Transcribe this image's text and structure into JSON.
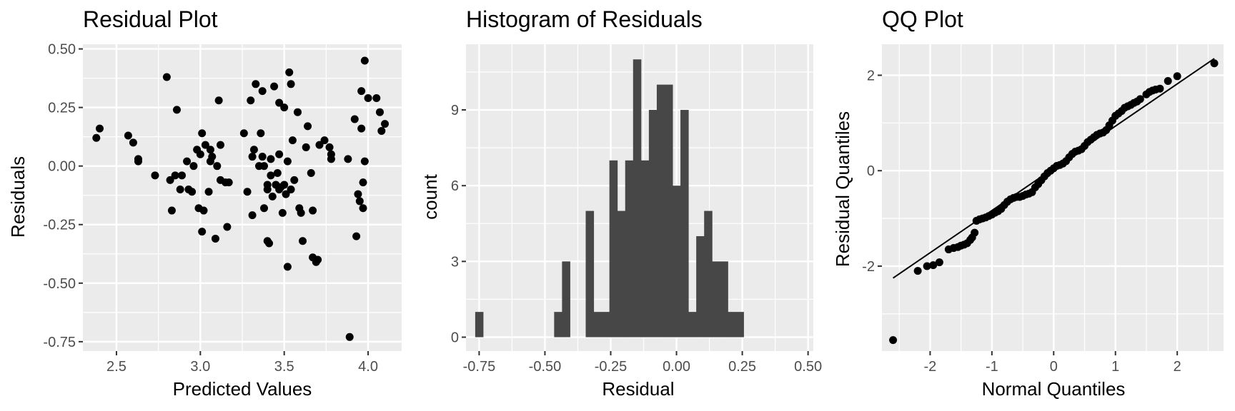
{
  "colors": {
    "panel_bg": "#ebebeb",
    "grid": "#ffffff",
    "points": "#000000",
    "bars": "#474747",
    "tick_text": "#4d4d4d",
    "tick_mark": "#333333"
  },
  "chart_data": [
    {
      "type": "scatter",
      "title": "Residual Plot",
      "xlabel": "Predicted Values",
      "ylabel": "Residuals",
      "xlim": [
        2.3,
        4.2
      ],
      "ylim": [
        -0.79,
        0.52
      ],
      "xticks": [
        2.5,
        3.0,
        3.5,
        4.0
      ],
      "xtick_labels": [
        "2.5",
        "3.0",
        "3.5",
        "4.0"
      ],
      "yticks": [
        -0.75,
        -0.5,
        -0.25,
        0.0,
        0.25,
        0.5
      ],
      "ytick_labels": [
        "-0.75",
        "-0.50",
        "-0.25",
        "0.00",
        "0.25",
        "0.50"
      ],
      "grid": true,
      "points": [
        [
          2.38,
          0.12
        ],
        [
          2.4,
          0.16
        ],
        [
          2.57,
          0.13
        ],
        [
          2.6,
          0.1
        ],
        [
          2.63,
          0.03
        ],
        [
          2.63,
          0.02
        ],
        [
          2.73,
          -0.04
        ],
        [
          2.8,
          0.38
        ],
        [
          2.82,
          -0.06
        ],
        [
          2.83,
          -0.19
        ],
        [
          2.85,
          -0.04
        ],
        [
          2.86,
          0.24
        ],
        [
          2.88,
          -0.1
        ],
        [
          2.89,
          -0.04
        ],
        [
          2.92,
          0.02
        ],
        [
          2.93,
          -0.1
        ],
        [
          2.95,
          -0.11
        ],
        [
          2.96,
          0.0
        ],
        [
          2.98,
          0.07
        ],
        [
          2.99,
          -0.18
        ],
        [
          3.0,
          0.05
        ],
        [
          3.01,
          -0.28
        ],
        [
          3.01,
          0.14
        ],
        [
          3.02,
          -0.19
        ],
        [
          3.03,
          0.09
        ],
        [
          3.05,
          -0.11
        ],
        [
          3.06,
          0.02
        ],
        [
          3.06,
          0.07
        ],
        [
          3.07,
          0.04
        ],
        [
          3.09,
          -0.31
        ],
        [
          3.1,
          0.0
        ],
        [
          3.11,
          0.28
        ],
        [
          3.12,
          0.09
        ],
        [
          3.12,
          -0.06
        ],
        [
          3.15,
          -0.07
        ],
        [
          3.16,
          -0.26
        ],
        [
          3.17,
          -0.07
        ],
        [
          3.26,
          0.14
        ],
        [
          3.28,
          -0.11
        ],
        [
          3.3,
          0.28
        ],
        [
          3.31,
          -0.21
        ],
        [
          3.31,
          0.04
        ],
        [
          3.32,
          0.07
        ],
        [
          3.33,
          0.35
        ],
        [
          3.35,
          0.0
        ],
        [
          3.36,
          0.14
        ],
        [
          3.37,
          0.32
        ],
        [
          3.37,
          0.04
        ],
        [
          3.38,
          0.0
        ],
        [
          3.38,
          -0.18
        ],
        [
          3.4,
          -0.08
        ],
        [
          3.4,
          -0.1
        ],
        [
          3.4,
          -0.32
        ],
        [
          3.41,
          -0.33
        ],
        [
          3.42,
          -0.04
        ],
        [
          3.42,
          0.03
        ],
        [
          3.43,
          -0.13
        ],
        [
          3.44,
          0.34
        ],
        [
          3.45,
          -0.08
        ],
        [
          3.46,
          -0.03
        ],
        [
          3.47,
          0.05
        ],
        [
          3.47,
          0.27
        ],
        [
          3.47,
          -0.1
        ],
        [
          3.48,
          -0.09
        ],
        [
          3.49,
          -0.2
        ],
        [
          3.5,
          0.25
        ],
        [
          3.5,
          -0.08
        ],
        [
          3.51,
          -0.12
        ],
        [
          3.52,
          0.02
        ],
        [
          3.52,
          -0.43
        ],
        [
          3.53,
          0.4
        ],
        [
          3.54,
          0.35
        ],
        [
          3.54,
          -0.1
        ],
        [
          3.55,
          0.11
        ],
        [
          3.56,
          -0.06
        ],
        [
          3.58,
          0.23
        ],
        [
          3.59,
          -0.18
        ],
        [
          3.6,
          -0.2
        ],
        [
          3.61,
          -0.32
        ],
        [
          3.63,
          0.08
        ],
        [
          3.64,
          0.17
        ],
        [
          3.66,
          -0.03
        ],
        [
          3.67,
          -0.19
        ],
        [
          3.67,
          -0.39
        ],
        [
          3.69,
          -0.41
        ],
        [
          3.7,
          -0.4
        ],
        [
          3.71,
          0.09
        ],
        [
          3.74,
          0.11
        ],
        [
          3.77,
          0.08
        ],
        [
          3.78,
          0.05
        ],
        [
          3.78,
          0.03
        ],
        [
          3.88,
          0.03
        ],
        [
          3.89,
          -0.73
        ],
        [
          3.92,
          0.2
        ],
        [
          3.93,
          -0.3
        ],
        [
          3.94,
          -0.12
        ],
        [
          3.95,
          -0.15
        ],
        [
          3.96,
          0.32
        ],
        [
          3.96,
          0.16
        ],
        [
          3.97,
          -0.18
        ],
        [
          3.97,
          -0.07
        ],
        [
          3.98,
          0.45
        ],
        [
          3.98,
          0.02
        ],
        [
          4.0,
          0.29
        ],
        [
          4.05,
          0.29
        ],
        [
          4.07,
          0.23
        ],
        [
          4.08,
          0.15
        ],
        [
          4.1,
          0.18
        ]
      ]
    },
    {
      "type": "bar",
      "subtype": "histogram",
      "title": "Histogram of Residuals",
      "xlabel": "Residual",
      "ylabel": "count",
      "bin_start": -0.75,
      "bin_width": 0.03,
      "counts": [
        1,
        0,
        0,
        0,
        0,
        0,
        0,
        0,
        0,
        0,
        1,
        3,
        0,
        0,
        5,
        1,
        1,
        7,
        5,
        7,
        11,
        7,
        9,
        10,
        10,
        6,
        9,
        1,
        4,
        5,
        3,
        3,
        1,
        1
      ],
      "xlim": [
        -0.8,
        0.52
      ],
      "ylim": [
        -0.55,
        11.6
      ],
      "xticks": [
        -0.75,
        -0.5,
        -0.25,
        0.0,
        0.25,
        0.5
      ],
      "xtick_labels": [
        "-0.75",
        "-0.50",
        "-0.25",
        "0.00",
        "0.25",
        "0.50"
      ],
      "yticks": [
        0,
        3,
        6,
        9
      ],
      "ytick_labels": [
        "0",
        "3",
        "6",
        "9"
      ],
      "grid": true
    },
    {
      "type": "scatter",
      "subtype": "qq",
      "title": "QQ Plot",
      "xlabel": "Normal Quantiles",
      "ylabel": "Residual Quantiles",
      "xlim": [
        -2.78,
        2.75
      ],
      "ylim": [
        -3.78,
        2.65
      ],
      "xticks": [
        -2,
        -1,
        0,
        1,
        2
      ],
      "xtick_labels": [
        "-2",
        "-1",
        "0",
        "1",
        "2"
      ],
      "yticks": [
        -2,
        0,
        2
      ],
      "ytick_labels": [
        "-2",
        "0",
        "2"
      ],
      "grid": true,
      "reference_line": {
        "x": [
          -2.6,
          2.6
        ],
        "y": [
          -2.25,
          2.35
        ]
      },
      "points": [
        [
          -2.6,
          -3.55
        ],
        [
          -2.2,
          -2.1
        ],
        [
          -2.05,
          -2.0
        ],
        [
          -1.95,
          -1.98
        ],
        [
          -1.85,
          -1.92
        ],
        [
          -1.7,
          -1.65
        ],
        [
          -1.62,
          -1.62
        ],
        [
          -1.55,
          -1.6
        ],
        [
          -1.5,
          -1.57
        ],
        [
          -1.45,
          -1.55
        ],
        [
          -1.4,
          -1.52
        ],
        [
          -1.35,
          -1.45
        ],
        [
          -1.32,
          -1.4
        ],
        [
          -1.28,
          -1.3
        ],
        [
          -1.25,
          -1.05
        ],
        [
          -1.2,
          -1.02
        ],
        [
          -1.15,
          -1.0
        ],
        [
          -1.1,
          -0.98
        ],
        [
          -1.05,
          -0.95
        ],
        [
          -1.0,
          -0.92
        ],
        [
          -0.95,
          -0.88
        ],
        [
          -0.9,
          -0.85
        ],
        [
          -0.85,
          -0.8
        ],
        [
          -0.8,
          -0.72
        ],
        [
          -0.75,
          -0.65
        ],
        [
          -0.7,
          -0.6
        ],
        [
          -0.65,
          -0.57
        ],
        [
          -0.6,
          -0.55
        ],
        [
          -0.55,
          -0.55
        ],
        [
          -0.5,
          -0.53
        ],
        [
          -0.45,
          -0.5
        ],
        [
          -0.4,
          -0.48
        ],
        [
          -0.35,
          -0.45
        ],
        [
          -0.3,
          -0.35
        ],
        [
          -0.25,
          -0.28
        ],
        [
          -0.2,
          -0.2
        ],
        [
          -0.15,
          -0.12
        ],
        [
          -0.1,
          -0.05
        ],
        [
          -0.05,
          0.0
        ],
        [
          0.0,
          0.05
        ],
        [
          0.05,
          0.1
        ],
        [
          0.1,
          0.12
        ],
        [
          0.15,
          0.15
        ],
        [
          0.2,
          0.2
        ],
        [
          0.25,
          0.28
        ],
        [
          0.3,
          0.35
        ],
        [
          0.35,
          0.4
        ],
        [
          0.4,
          0.42
        ],
        [
          0.45,
          0.45
        ],
        [
          0.5,
          0.52
        ],
        [
          0.55,
          0.6
        ],
        [
          0.6,
          0.65
        ],
        [
          0.65,
          0.7
        ],
        [
          0.7,
          0.75
        ],
        [
          0.75,
          0.78
        ],
        [
          0.8,
          0.8
        ],
        [
          0.85,
          0.85
        ],
        [
          0.9,
          0.95
        ],
        [
          0.95,
          1.05
        ],
        [
          1.0,
          1.15
        ],
        [
          1.05,
          1.2
        ],
        [
          1.1,
          1.25
        ],
        [
          1.15,
          1.32
        ],
        [
          1.2,
          1.35
        ],
        [
          1.25,
          1.38
        ],
        [
          1.3,
          1.42
        ],
        [
          1.35,
          1.45
        ],
        [
          1.4,
          1.5
        ],
        [
          1.5,
          1.6
        ],
        [
          1.55,
          1.65
        ],
        [
          1.6,
          1.68
        ],
        [
          1.65,
          1.7
        ],
        [
          1.72,
          1.72
        ],
        [
          1.85,
          1.88
        ],
        [
          2.0,
          1.98
        ],
        [
          2.6,
          2.25
        ]
      ]
    }
  ]
}
